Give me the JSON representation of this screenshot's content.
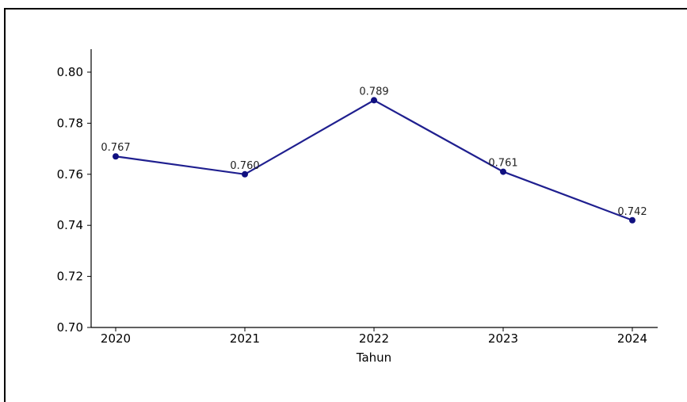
{
  "chart_data": {
    "type": "line",
    "title": "",
    "xlabel": "Tahun",
    "ylabel": "",
    "categories": [
      "2020",
      "2021",
      "2022",
      "2023",
      "2024"
    ],
    "values": [
      0.767,
      0.76,
      0.789,
      0.761,
      0.742
    ],
    "data_labels": [
      "0.767",
      "0.760",
      "0.789",
      "0.761",
      "0.742"
    ],
    "ylim": [
      0.7,
      0.809
    ],
    "yticks": [
      0.7,
      0.72,
      0.74,
      0.76,
      0.78,
      0.8
    ],
    "ytick_labels": [
      "0.70",
      "0.72",
      "0.74",
      "0.76",
      "0.78",
      "0.80"
    ],
    "grid": false,
    "line_color": "#1f1f8f",
    "marker_color": "#101080"
  }
}
